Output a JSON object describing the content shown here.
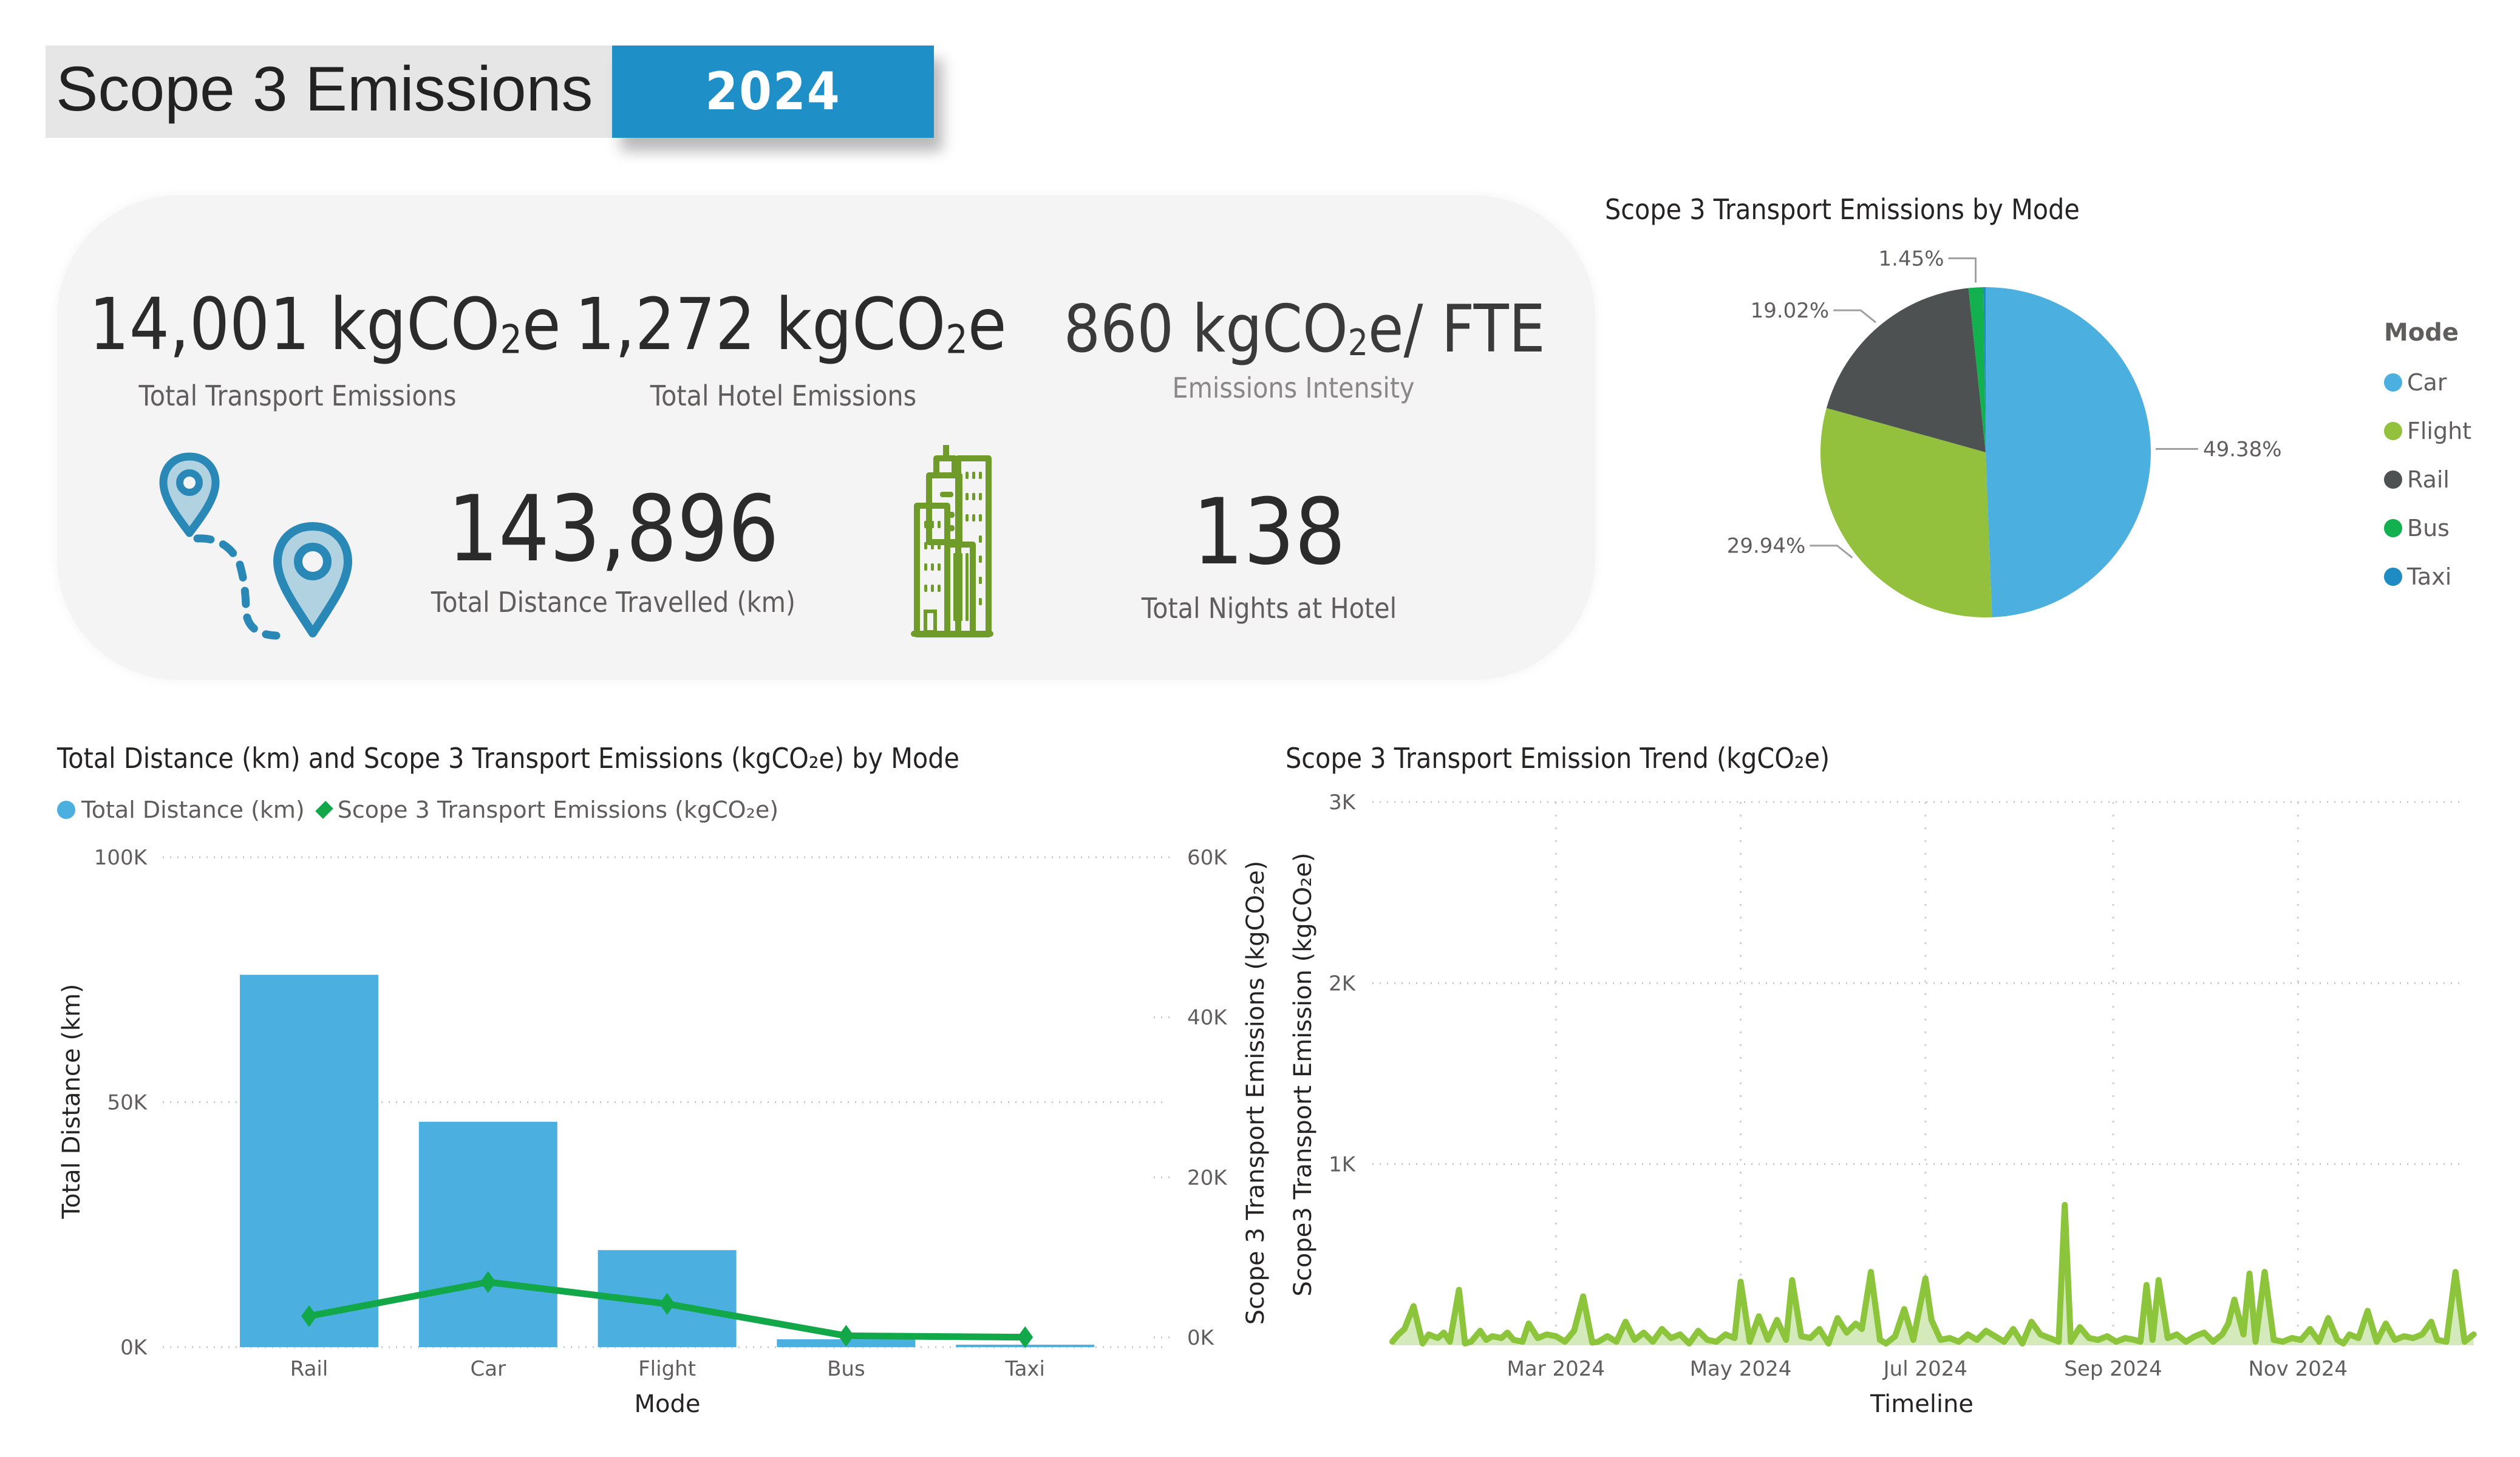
{
  "header": {
    "title": "Scope 3 Emissions",
    "year": "2024",
    "colors": {
      "title_bg": "#e6e6e6",
      "badge_bg": "#1f8fc7"
    }
  },
  "kpis": {
    "transport_emissions": {
      "value": "14,001 kgCO",
      "sub": "2",
      "suffix": "e",
      "label": "Total Transport Emissions"
    },
    "hotel_emissions": {
      "value": "1,272 kgCO",
      "sub": "2",
      "suffix": "e",
      "label": "Total Hotel Emissions"
    },
    "intensity": {
      "value": "860 kgCO",
      "sub": "2",
      "suffix": "e/ FTE",
      "label": "Emissions Intensity"
    },
    "distance": {
      "value": "143,896",
      "label": "Total Distance Travelled (km)",
      "icon": "map-route-pins-icon"
    },
    "nights": {
      "value": "138",
      "label": "Total Nights at Hotel",
      "icon": "hotel-buildings-icon"
    }
  },
  "colors": {
    "car": "#4bafe0",
    "flight": "#93c13d",
    "rail": "#4d5152",
    "bus": "#12b04f",
    "taxi": "#1e8bc3",
    "emission_line": "#12a84a",
    "trend_line": "#8cc43c",
    "trend_fill": "#d4eabb",
    "route_icon": "#2a88b7",
    "hotel_icon": "#6e9b2a"
  },
  "chart_data": [
    {
      "type": "pie",
      "title": "Scope 3 Transport Emissions by Mode",
      "legend_title": "Mode",
      "legend_position": "right",
      "categories": [
        "Car",
        "Flight",
        "Rail",
        "Bus",
        "Taxi"
      ],
      "values": [
        49.38,
        29.94,
        19.02,
        1.45,
        0.21
      ],
      "data_labels": [
        "49.38%",
        "29.94%",
        "19.02%",
        "1.45%",
        ""
      ]
    },
    {
      "type": "bar",
      "title": "Total Distance (km) and Scope 3 Transport Emissions (kgCO₂e) by Mode",
      "legend_position": "top-left",
      "categories": [
        "Rail",
        "Car",
        "Flight",
        "Bus",
        "Taxi"
      ],
      "xlabel": "Mode",
      "ylabel": "Total Distance (km)",
      "y2label": "Scope 3 Transport Emissions (kgCO₂e)",
      "y3label": "Scope3 Transport Emission (kgCO₂e)",
      "ylim": [
        0,
        100000
      ],
      "y2lim": [
        0,
        60000
      ],
      "yticks": [
        "0K",
        "50K",
        "100K"
      ],
      "y2ticks": [
        "0K",
        "20K",
        "40K",
        "60K"
      ],
      "grid": true,
      "series": [
        {
          "name": "Total Distance (km)",
          "type": "bar",
          "axis": "left",
          "values": [
            76000,
            46000,
            19800,
            1600,
            500
          ]
        },
        {
          "name": "Scope 3 Transport Emissions (kgCO₂e)",
          "type": "line",
          "axis": "right",
          "values": [
            2663,
            6914,
            4192,
            203,
            29
          ]
        }
      ]
    },
    {
      "type": "area",
      "title": "Scope 3 Transport Emission Trend (kgCO₂e)",
      "xlabel": "Timeline",
      "ylabel": "Scope3 Transport Emission (kgCO₂e)",
      "ylim": [
        0,
        3000
      ],
      "yticks": [
        "1K",
        "2K",
        "3K"
      ],
      "xticks": [
        "Mar 2024",
        "May 2024",
        "Jul 2024",
        "Sep 2024",
        "Nov 2024"
      ],
      "xtick_dates": [
        "2024-03-01",
        "2024-05-01",
        "2024-07-01",
        "2024-09-01",
        "2024-11-01"
      ],
      "grid": true,
      "series": [
        {
          "name": "Scope3 Transport Emission (kgCO₂e)",
          "dates": [
            "2024-01-07",
            "2024-01-09",
            "2024-01-11",
            "2024-01-14",
            "2024-01-17",
            "2024-01-19",
            "2024-01-22",
            "2024-01-24",
            "2024-01-26",
            "2024-01-29",
            "2024-01-31",
            "2024-02-02",
            "2024-02-05",
            "2024-02-07",
            "2024-02-09",
            "2024-02-12",
            "2024-02-14",
            "2024-02-16",
            "2024-02-19",
            "2024-02-21",
            "2024-02-24",
            "2024-02-27",
            "2024-03-01",
            "2024-03-04",
            "2024-03-07",
            "2024-03-10",
            "2024-03-13",
            "2024-03-15",
            "2024-03-18",
            "2024-03-21",
            "2024-03-24",
            "2024-03-27",
            "2024-03-30",
            "2024-04-02",
            "2024-04-05",
            "2024-04-08",
            "2024-04-11",
            "2024-04-14",
            "2024-04-17",
            "2024-04-20",
            "2024-04-23",
            "2024-04-26",
            "2024-04-29",
            "2024-05-01",
            "2024-05-04",
            "2024-05-07",
            "2024-05-10",
            "2024-05-13",
            "2024-05-16",
            "2024-05-18",
            "2024-05-21",
            "2024-05-24",
            "2024-05-27",
            "2024-05-30",
            "2024-06-02",
            "2024-06-05",
            "2024-06-08",
            "2024-06-10",
            "2024-06-13",
            "2024-06-16",
            "2024-06-18",
            "2024-06-21",
            "2024-06-24",
            "2024-06-27",
            "2024-07-01",
            "2024-07-03",
            "2024-07-06",
            "2024-07-09",
            "2024-07-12",
            "2024-07-15",
            "2024-07-18",
            "2024-07-21",
            "2024-07-24",
            "2024-07-27",
            "2024-07-30",
            "2024-08-02",
            "2024-08-05",
            "2024-08-08",
            "2024-08-11",
            "2024-08-14",
            "2024-08-16",
            "2024-08-18",
            "2024-08-21",
            "2024-08-24",
            "2024-08-27",
            "2024-08-30",
            "2024-09-02",
            "2024-09-05",
            "2024-09-08",
            "2024-09-10",
            "2024-09-12",
            "2024-09-14",
            "2024-09-16",
            "2024-09-19",
            "2024-09-22",
            "2024-09-25",
            "2024-09-28",
            "2024-10-01",
            "2024-10-04",
            "2024-10-07",
            "2024-10-09",
            "2024-10-11",
            "2024-10-14",
            "2024-10-16",
            "2024-10-18",
            "2024-10-21",
            "2024-10-24",
            "2024-10-27",
            "2024-10-30",
            "2024-11-02",
            "2024-11-05",
            "2024-11-08",
            "2024-11-11",
            "2024-11-14",
            "2024-11-16",
            "2024-11-18",
            "2024-11-21",
            "2024-11-24",
            "2024-11-27",
            "2024-11-30",
            "2024-12-03",
            "2024-12-06",
            "2024-12-09",
            "2024-12-12",
            "2024-12-15",
            "2024-12-17",
            "2024-12-20",
            "2024-12-23",
            "2024-12-26",
            "2024-12-29"
          ],
          "values": [
            20,
            60,
            90,
            216,
            10,
            60,
            40,
            70,
            20,
            306,
            10,
            20,
            80,
            30,
            50,
            40,
            70,
            30,
            20,
            120,
            40,
            60,
            50,
            20,
            80,
            270,
            15,
            20,
            50,
            20,
            130,
            30,
            70,
            20,
            90,
            40,
            60,
            10,
            80,
            30,
            20,
            60,
            40,
            351,
            20,
            160,
            30,
            140,
            30,
            360,
            50,
            40,
            90,
            10,
            150,
            70,
            120,
            90,
            405,
            30,
            10,
            50,
            200,
            30,
            369,
            140,
            30,
            40,
            20,
            60,
            30,
            80,
            50,
            20,
            90,
            10,
            130,
            60,
            40,
            20,
            775,
            20,
            100,
            40,
            30,
            50,
            20,
            40,
            30,
            20,
            333,
            30,
            360,
            40,
            60,
            20,
            50,
            70,
            20,
            60,
            120,
            252,
            60,
            396,
            20,
            405,
            30,
            20,
            40,
            30,
            90,
            20,
            150,
            30,
            10,
            60,
            40,
            190,
            20,
            120,
            30,
            50,
            40,
            60,
            130,
            30,
            20,
            405,
            20,
            60
          ]
        }
      ]
    }
  ]
}
